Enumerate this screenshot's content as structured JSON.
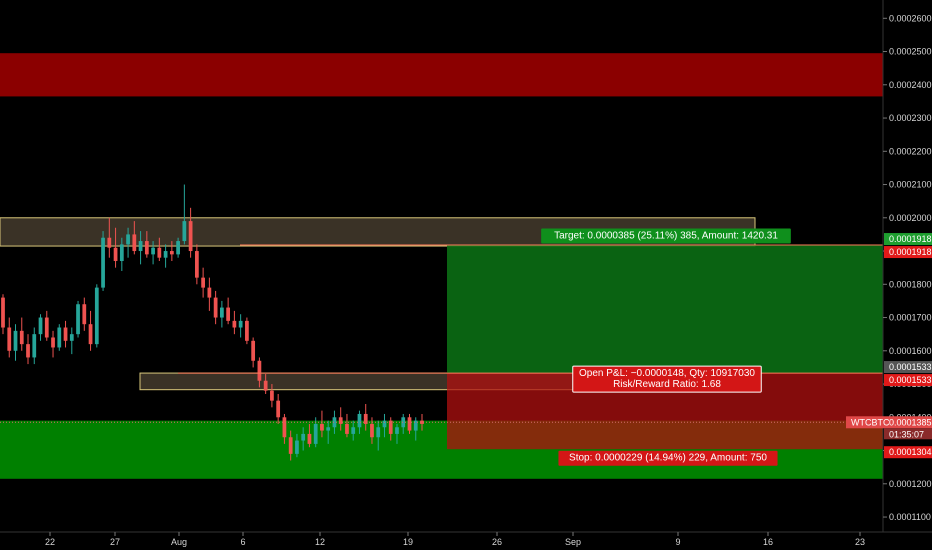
{
  "chart_data": {
    "type": "candlestick",
    "symbol": "WTCBTC",
    "last_price": "0.0001385",
    "countdown": "01:35:07",
    "y_ticks": [
      "0.0002600",
      "0.0002500",
      "0.0002400",
      "0.0002300",
      "0.0002200",
      "0.0002100",
      "0.0002000",
      "0.0001900",
      "0.0001800",
      "0.0001700",
      "0.0001600",
      "0.0001500",
      "0.0001400",
      "0.0001300",
      "0.0001200",
      "0.0001100"
    ],
    "x_ticks": [
      "22",
      "27",
      "Aug",
      "6",
      "12",
      "19",
      "26",
      "Sep",
      "9",
      "16",
      "23"
    ],
    "ylim": [
      0.0001055,
      0.0002655
    ],
    "price_labels": [
      {
        "text": "0.0001918",
        "price": 0.0001918,
        "color": "#1e9e2f"
      },
      {
        "text": "0.0001918",
        "price": 0.0001918,
        "color": "#e11919"
      },
      {
        "text": "0.0001533",
        "price": 0.0001533,
        "color": "#555555"
      },
      {
        "text": "0.0001533",
        "price": 0.0001533,
        "color": "#e11919"
      },
      {
        "text": "0.0001304",
        "price": 0.0001304,
        "color": "#e11919"
      }
    ],
    "zones": [
      {
        "name": "resistance-zone-top",
        "from": 0.0002365,
        "to": 0.0002495,
        "color": "#8b0000"
      },
      {
        "name": "resistance-zone-mid",
        "from": 0.0001915,
        "to": 0.0002,
        "color": "#3a3226"
      },
      {
        "name": "entry-zone",
        "from": 0.0001483,
        "to": 0.0001533,
        "color": "#3a3226"
      },
      {
        "name": "support-zone",
        "from": 0.0001215,
        "to": 0.000139,
        "color": "#008000"
      }
    ],
    "position": {
      "side": "long",
      "entry": 0.0001533,
      "target": 0.0001918,
      "stop": 0.0001304,
      "target_label": "Target: 0.0000385 (25.11%) 385, Amount: 1420.31",
      "pnl_label": "Open P&L: −0.0000148, Qty: 10917030",
      "rr_label": "Risk/Reward Ratio: 1.68",
      "stop_label": "Stop: 0.0000229 (14.94%) 229, Amount: 750"
    },
    "candles": [
      [
        0.000176,
        0.000177,
        0.000165,
        0.000167
      ],
      [
        0.000167,
        0.00017,
        0.000158,
        0.00016
      ],
      [
        0.00016,
        0.000168,
        0.000157,
        0.000166
      ],
      [
        0.000166,
        0.00017,
        0.00016,
        0.000162
      ],
      [
        0.000162,
        0.000165,
        0.000156,
        0.000158
      ],
      [
        0.000158,
        0.000167,
        0.000156,
        0.000165
      ],
      [
        0.000165,
        0.000171,
        0.000163,
        0.00017
      ],
      [
        0.00017,
        0.000172,
        0.000163,
        0.000164
      ],
      [
        0.000164,
        0.000166,
        0.000158,
        0.000161
      ],
      [
        0.000161,
        0.000168,
        0.00016,
        0.000167
      ],
      [
        0.000167,
        0.000169,
        0.000161,
        0.000163
      ],
      [
        0.000163,
        0.000167,
        0.000159,
        0.000165
      ],
      [
        0.000165,
        0.000175,
        0.000164,
        0.000174
      ],
      [
        0.000174,
        0.000176,
        0.000166,
        0.000168
      ],
      [
        0.000168,
        0.000172,
        0.00016,
        0.000162
      ],
      [
        0.000162,
        0.00018,
        0.000161,
        0.000179
      ],
      [
        0.000179,
        0.000196,
        0.000178,
        0.000194
      ],
      [
        0.000194,
        0.0002,
        0.000188,
        0.000191
      ],
      [
        0.000191,
        0.000197,
        0.000185,
        0.000187
      ],
      [
        0.000187,
        0.000194,
        0.000184,
        0.000192
      ],
      [
        0.000192,
        0.000197,
        0.000188,
        0.000195
      ],
      [
        0.000195,
        0.000199,
        0.000189,
        0.00019
      ],
      [
        0.00019,
        0.000196,
        0.000186,
        0.000193
      ],
      [
        0.000193,
        0.000196,
        0.000188,
        0.000189
      ],
      [
        0.000189,
        0.000193,
        0.000186,
        0.000191
      ],
      [
        0.000191,
        0.000194,
        0.000187,
        0.000188
      ],
      [
        0.000188,
        0.000192,
        0.000185,
        0.00019
      ],
      [
        0.00019,
        0.000193,
        0.000187,
        0.000189
      ],
      [
        0.000189,
        0.000194,
        0.000188,
        0.000193
      ],
      [
        0.000193,
        0.00021,
        0.000192,
        0.000199
      ],
      [
        0.000199,
        0.000203,
        0.000188,
        0.00019
      ],
      [
        0.00019,
        0.000192,
        0.00018,
        0.000182
      ],
      [
        0.000182,
        0.000185,
        0.000176,
        0.000179
      ],
      [
        0.000179,
        0.000182,
        0.000172,
        0.000176
      ],
      [
        0.000176,
        0.000178,
        0.000168,
        0.00017
      ],
      [
        0.00017,
        0.000175,
        0.000167,
        0.000173
      ],
      [
        0.000173,
        0.000176,
        0.000168,
        0.000169
      ],
      [
        0.000169,
        0.000172,
        0.000165,
        0.000167
      ],
      [
        0.000167,
        0.000171,
        0.000164,
        0.000169
      ],
      [
        0.000169,
        0.00017,
        0.000162,
        0.000163
      ],
      [
        0.000163,
        0.000164,
        0.000155,
        0.000157
      ],
      [
        0.000157,
        0.000158,
        0.000149,
        0.000151
      ],
      [
        0.000151,
        0.000153,
        0.000147,
        0.000148
      ],
      [
        0.000148,
        0.00015,
        0.000143,
        0.000145
      ],
      [
        0.000145,
        0.000147,
        0.000138,
        0.00014
      ],
      [
        0.00014,
        0.000141,
        0.000132,
        0.000134
      ],
      [
        0.000134,
        0.000136,
        0.000127,
        0.000129
      ],
      [
        0.000129,
        0.000135,
        0.000128,
        0.000133
      ],
      [
        0.000133,
        0.000137,
        0.00013,
        0.000135
      ],
      [
        0.000135,
        0.000138,
        0.000131,
        0.000132
      ],
      [
        0.000132,
        0.00014,
        0.000131,
        0.000138
      ],
      [
        0.000138,
        0.000142,
        0.000134,
        0.000136
      ],
      [
        0.000136,
        0.000139,
        0.000132,
        0.000137
      ],
      [
        0.000137,
        0.000142,
        0.000135,
        0.00014
      ],
      [
        0.00014,
        0.000143,
        0.000136,
        0.000138
      ],
      [
        0.000138,
        0.000141,
        0.000134,
        0.000135
      ],
      [
        0.000135,
        0.000139,
        0.000133,
        0.000137
      ],
      [
        0.000137,
        0.000142,
        0.000135,
        0.000141
      ],
      [
        0.000141,
        0.000144,
        0.000136,
        0.000138
      ],
      [
        0.000138,
        0.00014,
        0.000132,
        0.000134
      ],
      [
        0.000134,
        0.000139,
        0.00013,
        0.000137
      ],
      [
        0.000137,
        0.000141,
        0.000134,
        0.000139
      ],
      [
        0.000139,
        0.00014,
        0.000133,
        0.000135
      ],
      [
        0.000135,
        0.000138,
        0.000132,
        0.000137
      ],
      [
        0.000137,
        0.000141,
        0.000135,
        0.00014
      ],
      [
        0.00014,
        0.000141,
        0.000135,
        0.000136
      ],
      [
        0.000136,
        0.00014,
        0.000133,
        0.000139
      ],
      [
        0.000139,
        0.000141,
        0.000136,
        0.000138
      ]
    ]
  }
}
